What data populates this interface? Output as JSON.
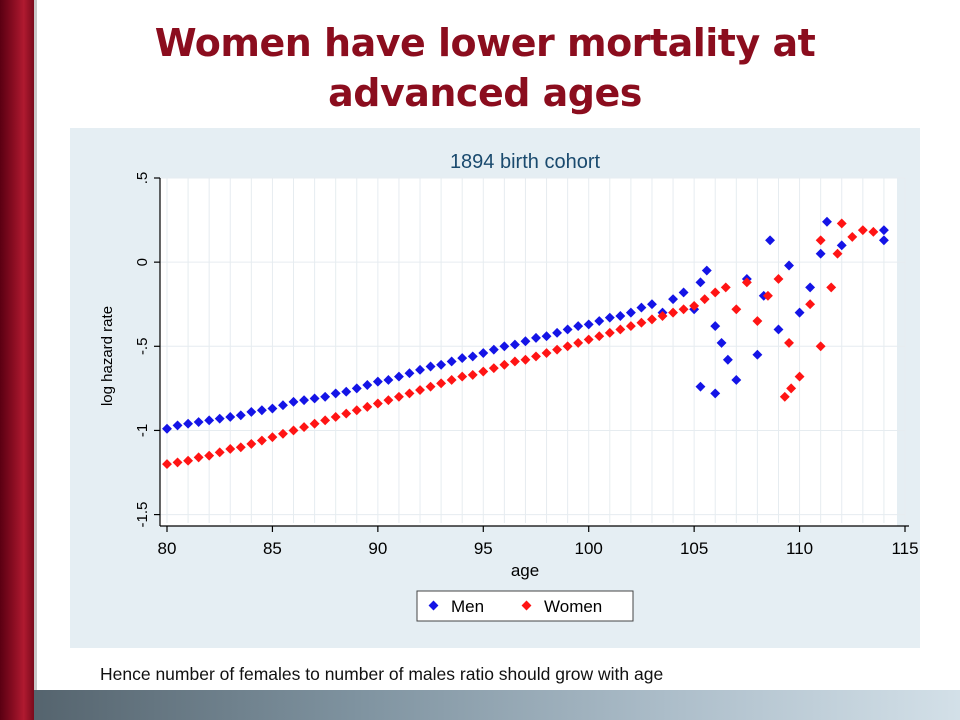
{
  "slide": {
    "title": "Women have lower mortality at advanced ages",
    "caption": "Hence number of females to number of males ratio should grow with age"
  },
  "chart_data": {
    "type": "scatter",
    "title": "1894 birth cohort",
    "xlabel": "age",
    "ylabel": "log hazard rate",
    "xlim": [
      80,
      115
    ],
    "ylim": [
      -1.55,
      0.5
    ],
    "xticks": [
      80,
      85,
      90,
      95,
      100,
      105,
      110,
      115
    ],
    "xtick_labels": [
      "80",
      "85",
      "90",
      "95",
      "100",
      "105",
      "110",
      "115"
    ],
    "yticks": [
      -1.5,
      -1,
      -0.5,
      0,
      0.5
    ],
    "ytick_labels": [
      "-1.5",
      "-1",
      "-.5",
      "0",
      ".5"
    ],
    "grid": true,
    "legend_position": "bottom-center",
    "series": [
      {
        "name": "Men",
        "color": "#1414e6",
        "points": [
          [
            80.0,
            -0.99
          ],
          [
            80.5,
            -0.97
          ],
          [
            81.0,
            -0.96
          ],
          [
            81.5,
            -0.95
          ],
          [
            82.0,
            -0.94
          ],
          [
            82.5,
            -0.93
          ],
          [
            83.0,
            -0.92
          ],
          [
            83.5,
            -0.91
          ],
          [
            84.0,
            -0.89
          ],
          [
            84.5,
            -0.88
          ],
          [
            85.0,
            -0.87
          ],
          [
            85.5,
            -0.85
          ],
          [
            86.0,
            -0.83
          ],
          [
            86.5,
            -0.82
          ],
          [
            87.0,
            -0.81
          ],
          [
            87.5,
            -0.8
          ],
          [
            88.0,
            -0.78
          ],
          [
            88.5,
            -0.77
          ],
          [
            89.0,
            -0.75
          ],
          [
            89.5,
            -0.73
          ],
          [
            90.0,
            -0.71
          ],
          [
            90.5,
            -0.7
          ],
          [
            91.0,
            -0.68
          ],
          [
            91.5,
            -0.66
          ],
          [
            92.0,
            -0.64
          ],
          [
            92.5,
            -0.62
          ],
          [
            93.0,
            -0.61
          ],
          [
            93.5,
            -0.59
          ],
          [
            94.0,
            -0.57
          ],
          [
            94.5,
            -0.56
          ],
          [
            95.0,
            -0.54
          ],
          [
            95.5,
            -0.52
          ],
          [
            96.0,
            -0.5
          ],
          [
            96.5,
            -0.49
          ],
          [
            97.0,
            -0.47
          ],
          [
            97.5,
            -0.45
          ],
          [
            98.0,
            -0.44
          ],
          [
            98.5,
            -0.42
          ],
          [
            99.0,
            -0.4
          ],
          [
            99.5,
            -0.38
          ],
          [
            100.0,
            -0.37
          ],
          [
            100.5,
            -0.35
          ],
          [
            101.0,
            -0.33
          ],
          [
            101.5,
            -0.32
          ],
          [
            102.0,
            -0.3
          ],
          [
            102.5,
            -0.27
          ],
          [
            103.0,
            -0.25
          ],
          [
            103.5,
            -0.3
          ],
          [
            104.0,
            -0.22
          ],
          [
            104.5,
            -0.18
          ],
          [
            105.0,
            -0.28
          ],
          [
            105.3,
            -0.12
          ],
          [
            105.6,
            -0.05
          ],
          [
            106.0,
            -0.38
          ],
          [
            106.3,
            -0.48
          ],
          [
            106.6,
            -0.58
          ],
          [
            106.0,
            -0.78
          ],
          [
            105.3,
            -0.74
          ],
          [
            107.0,
            -0.7
          ],
          [
            107.5,
            -0.1
          ],
          [
            108.0,
            -0.55
          ],
          [
            108.3,
            -0.2
          ],
          [
            108.6,
            0.13
          ],
          [
            109.0,
            -0.4
          ],
          [
            109.5,
            -0.02
          ],
          [
            110.0,
            -0.3
          ],
          [
            110.5,
            -0.15
          ],
          [
            111.0,
            0.05
          ],
          [
            111.3,
            0.24
          ],
          [
            112.0,
            0.1
          ],
          [
            114.0,
            0.13
          ],
          [
            114.0,
            0.19
          ]
        ]
      },
      {
        "name": "Women",
        "color": "#ff1414",
        "points": [
          [
            80.0,
            -1.2
          ],
          [
            80.5,
            -1.19
          ],
          [
            81.0,
            -1.18
          ],
          [
            81.5,
            -1.16
          ],
          [
            82.0,
            -1.15
          ],
          [
            82.5,
            -1.13
          ],
          [
            83.0,
            -1.11
          ],
          [
            83.5,
            -1.1
          ],
          [
            84.0,
            -1.08
          ],
          [
            84.5,
            -1.06
          ],
          [
            85.0,
            -1.04
          ],
          [
            85.5,
            -1.02
          ],
          [
            86.0,
            -1.0
          ],
          [
            86.5,
            -0.98
          ],
          [
            87.0,
            -0.96
          ],
          [
            87.5,
            -0.94
          ],
          [
            88.0,
            -0.92
          ],
          [
            88.5,
            -0.9
          ],
          [
            89.0,
            -0.88
          ],
          [
            89.5,
            -0.86
          ],
          [
            90.0,
            -0.84
          ],
          [
            90.5,
            -0.82
          ],
          [
            91.0,
            -0.8
          ],
          [
            91.5,
            -0.78
          ],
          [
            92.0,
            -0.76
          ],
          [
            92.5,
            -0.74
          ],
          [
            93.0,
            -0.72
          ],
          [
            93.5,
            -0.7
          ],
          [
            94.0,
            -0.68
          ],
          [
            94.5,
            -0.67
          ],
          [
            95.0,
            -0.65
          ],
          [
            95.5,
            -0.63
          ],
          [
            96.0,
            -0.61
          ],
          [
            96.5,
            -0.59
          ],
          [
            97.0,
            -0.58
          ],
          [
            97.5,
            -0.56
          ],
          [
            98.0,
            -0.54
          ],
          [
            98.5,
            -0.52
          ],
          [
            99.0,
            -0.5
          ],
          [
            99.5,
            -0.48
          ],
          [
            100.0,
            -0.46
          ],
          [
            100.5,
            -0.44
          ],
          [
            101.0,
            -0.42
          ],
          [
            101.5,
            -0.4
          ],
          [
            102.0,
            -0.38
          ],
          [
            102.5,
            -0.36
          ],
          [
            103.0,
            -0.34
          ],
          [
            103.5,
            -0.32
          ],
          [
            104.0,
            -0.3
          ],
          [
            104.5,
            -0.28
          ],
          [
            105.0,
            -0.26
          ],
          [
            105.5,
            -0.22
          ],
          [
            106.0,
            -0.18
          ],
          [
            106.5,
            -0.15
          ],
          [
            107.0,
            -0.28
          ],
          [
            107.5,
            -0.12
          ],
          [
            108.0,
            -0.35
          ],
          [
            108.5,
            -0.2
          ],
          [
            109.0,
            -0.1
          ],
          [
            109.3,
            -0.8
          ],
          [
            109.6,
            -0.75
          ],
          [
            110.0,
            -0.68
          ],
          [
            109.5,
            -0.48
          ],
          [
            110.5,
            -0.25
          ],
          [
            111.0,
            -0.5
          ],
          [
            111.0,
            0.13
          ],
          [
            111.5,
            -0.15
          ],
          [
            111.8,
            0.05
          ],
          [
            112.0,
            0.23
          ],
          [
            112.5,
            0.15
          ],
          [
            113.0,
            0.19
          ],
          [
            113.5,
            0.18
          ]
        ]
      }
    ]
  }
}
